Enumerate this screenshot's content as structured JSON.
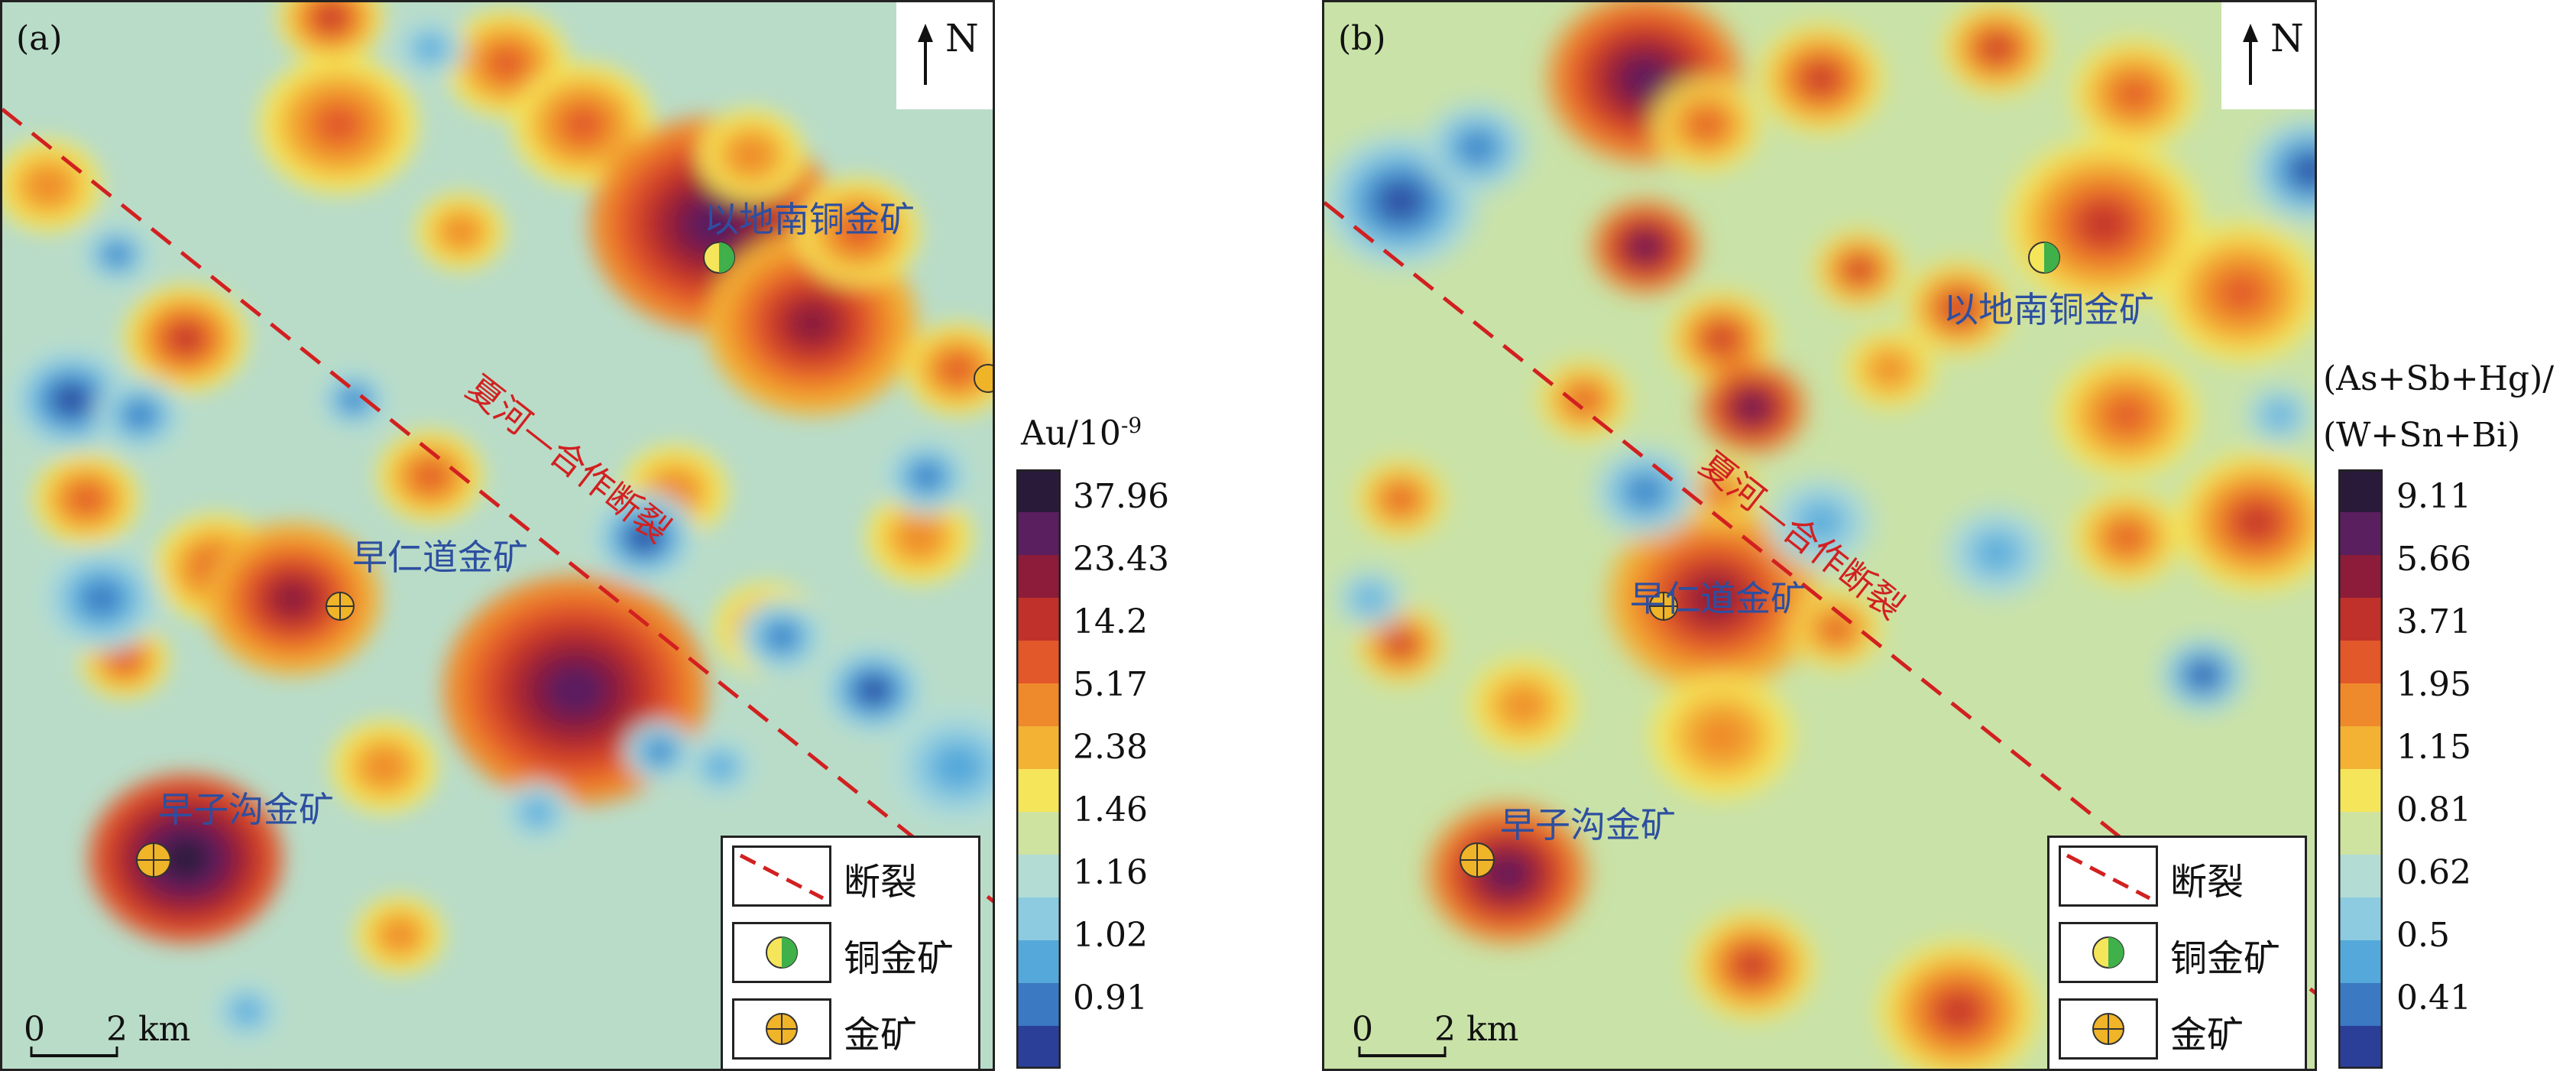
{
  "panels": [
    {
      "label": "(a)",
      "north": "N",
      "mines": [
        {
          "name": "以地南铜金矿",
          "type": "copper-gold"
        },
        {
          "name": "早仁道金矿",
          "type": "gold"
        },
        {
          "name": "早子沟金矿",
          "type": "gold"
        }
      ],
      "fault_label": "夏河—合作断裂",
      "scale": {
        "zero": "0",
        "distance": "2 km"
      },
      "legend": [
        {
          "label": "断裂",
          "icon": "dashed-fault-line-icon"
        },
        {
          "label": "铜金矿",
          "icon": "copper-gold-mine-icon"
        },
        {
          "label": "金矿",
          "icon": "gold-mine-icon"
        }
      ],
      "colorbar": {
        "title_lines": [
          "Au/10",
          "-9"
        ],
        "ticks": [
          "37.96",
          "23.43",
          "14.2",
          "5.17",
          "2.38",
          "1.46",
          "1.16",
          "1.02",
          "0.91"
        ]
      }
    },
    {
      "label": "(b)",
      "north": "N",
      "mines": [
        {
          "name": "以地南铜金矿",
          "type": "copper-gold"
        },
        {
          "name": "早仁道金矿",
          "type": "gold"
        },
        {
          "name": "早子沟金矿",
          "type": "gold"
        }
      ],
      "fault_label": "夏河—合作断裂",
      "scale": {
        "zero": "0",
        "distance": "2 km"
      },
      "legend": [
        {
          "label": "断裂",
          "icon": "dashed-fault-line-icon"
        },
        {
          "label": "铜金矿",
          "icon": "copper-gold-mine-icon"
        },
        {
          "label": "金矿",
          "icon": "gold-mine-icon"
        }
      ],
      "colorbar": {
        "title_lines": [
          "(As+Sb+Hg)/",
          "(W+Sn+Bi)"
        ],
        "ticks": [
          "9.11",
          "5.66",
          "3.71",
          "1.95",
          "1.15",
          "0.81",
          "0.62",
          "0.5",
          "0.41"
        ]
      }
    }
  ],
  "colors": {
    "palette": [
      "#2a1a3a",
      "#5a1f5e",
      "#8c1c3a",
      "#c0312b",
      "#e2582a",
      "#ef8a2c",
      "#f3b234",
      "#f5e55a",
      "#cfe3a0",
      "#b2dcd4",
      "#8ccbe0",
      "#55a9da",
      "#3b79c2",
      "#2c3f98"
    ],
    "fault": "#d22020",
    "label_blue": "#2d4fa0",
    "copper_half": "#3fb04a",
    "gold_fill": "#f0b428"
  }
}
